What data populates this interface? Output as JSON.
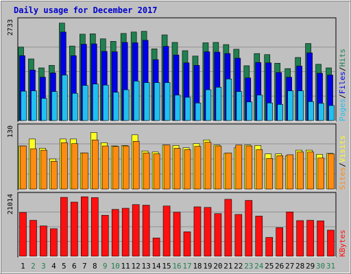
{
  "chart_data": {
    "type": "bar",
    "title": "Daily usage for December 2017",
    "days": [
      1,
      2,
      3,
      4,
      5,
      6,
      7,
      8,
      9,
      10,
      11,
      12,
      13,
      14,
      15,
      16,
      17,
      18,
      19,
      20,
      21,
      22,
      23,
      24,
      25,
      26,
      27,
      28,
      29,
      30,
      31
    ],
    "weekend_days": [
      2,
      3,
      9,
      10,
      16,
      17,
      23,
      24,
      30,
      31
    ],
    "colors": {
      "background": "#c0c0c0",
      "plot_bg": "#c0c0c0",
      "hits": "#208050",
      "files": "#0000e8",
      "pages": "#20c0f0",
      "visits": "#ffff20",
      "sites": "#ff8c10",
      "kbytes": "#ff1010",
      "title": "#0000cc",
      "weekday": "#000000",
      "weekend": "#208050",
      "grid": "#909090"
    },
    "panels": [
      {
        "name": "hits-files-pages",
        "ymax_label": "2733",
        "ymax": 2733,
        "legend": [
          "Pages",
          "Files",
          "Hits"
        ],
        "series": [
          {
            "name": "Hits",
            "values": [
              2050,
              1720,
              1470,
              1540,
              2720,
              2080,
              2410,
              2420,
              2280,
              2210,
              2430,
              2470,
              2490,
              2000,
              2390,
              2180,
              1950,
              1800,
              2170,
              2180,
              2120,
              1990,
              1530,
              1870,
              1840,
              1600,
              1450,
              1760,
              2150,
              1570,
              1470
            ]
          },
          {
            "name": "Files",
            "values": [
              1810,
              1410,
              1210,
              1330,
              2470,
              1810,
              2130,
              2140,
              1930,
              1920,
              2180,
              2170,
              2240,
              1700,
              2070,
              1830,
              1610,
              1540,
              1920,
              1910,
              1870,
              1740,
              1190,
              1620,
              1610,
              1340,
              1210,
              1520,
              1890,
              1320,
              1270
            ]
          },
          {
            "name": "Pages",
            "values": [
              820,
              830,
              620,
              810,
              1270,
              760,
              980,
              1020,
              990,
              790,
              860,
              1100,
              1060,
              1060,
              1060,
              710,
              650,
              490,
              860,
              930,
              1160,
              810,
              520,
              710,
              490,
              450,
              830,
              830,
              530,
              480,
              420
            ]
          }
        ]
      },
      {
        "name": "visits-sites",
        "ymax_label": "130",
        "ymax": 130,
        "legend": [
          "Sites",
          "Visits"
        ],
        "series": [
          {
            "name": "Visits",
            "values": [
              93,
              108,
              88,
              65,
              108,
              108,
              78,
              122,
              100,
              93,
              94,
              117,
              82,
              80,
              95,
              94,
              89,
              98,
              106,
              95,
              77,
              89,
              95,
              94,
              76,
              76,
              72,
              84,
              84,
              75,
              77
            ]
          },
          {
            "name": "Sites",
            "values": [
              93,
              87,
              84,
              60,
              100,
              98,
              78,
              106,
              93,
              92,
              93,
              103,
              78,
              76,
              95,
              88,
              85,
              92,
              101,
              93,
              78,
              95,
              93,
              85,
              66,
              72,
              74,
              80,
              80,
              67,
              76
            ]
          }
        ]
      },
      {
        "name": "kbytes",
        "ymax_label": "21014",
        "ymax": 21014,
        "legend": [
          "KBytes"
        ],
        "series": [
          {
            "name": "KBytes",
            "values": [
              15600,
              12800,
              10800,
              9800,
              21000,
              19300,
              21200,
              20900,
              14600,
              16700,
              17100,
              18400,
              18200,
              6500,
              17900,
              15700,
              8700,
              17600,
              17400,
              15200,
              20300,
              14900,
              19900,
              14300,
              6700,
              10200,
              15800,
              12700,
              12800,
              12600,
              9300
            ]
          }
        ]
      }
    ]
  }
}
